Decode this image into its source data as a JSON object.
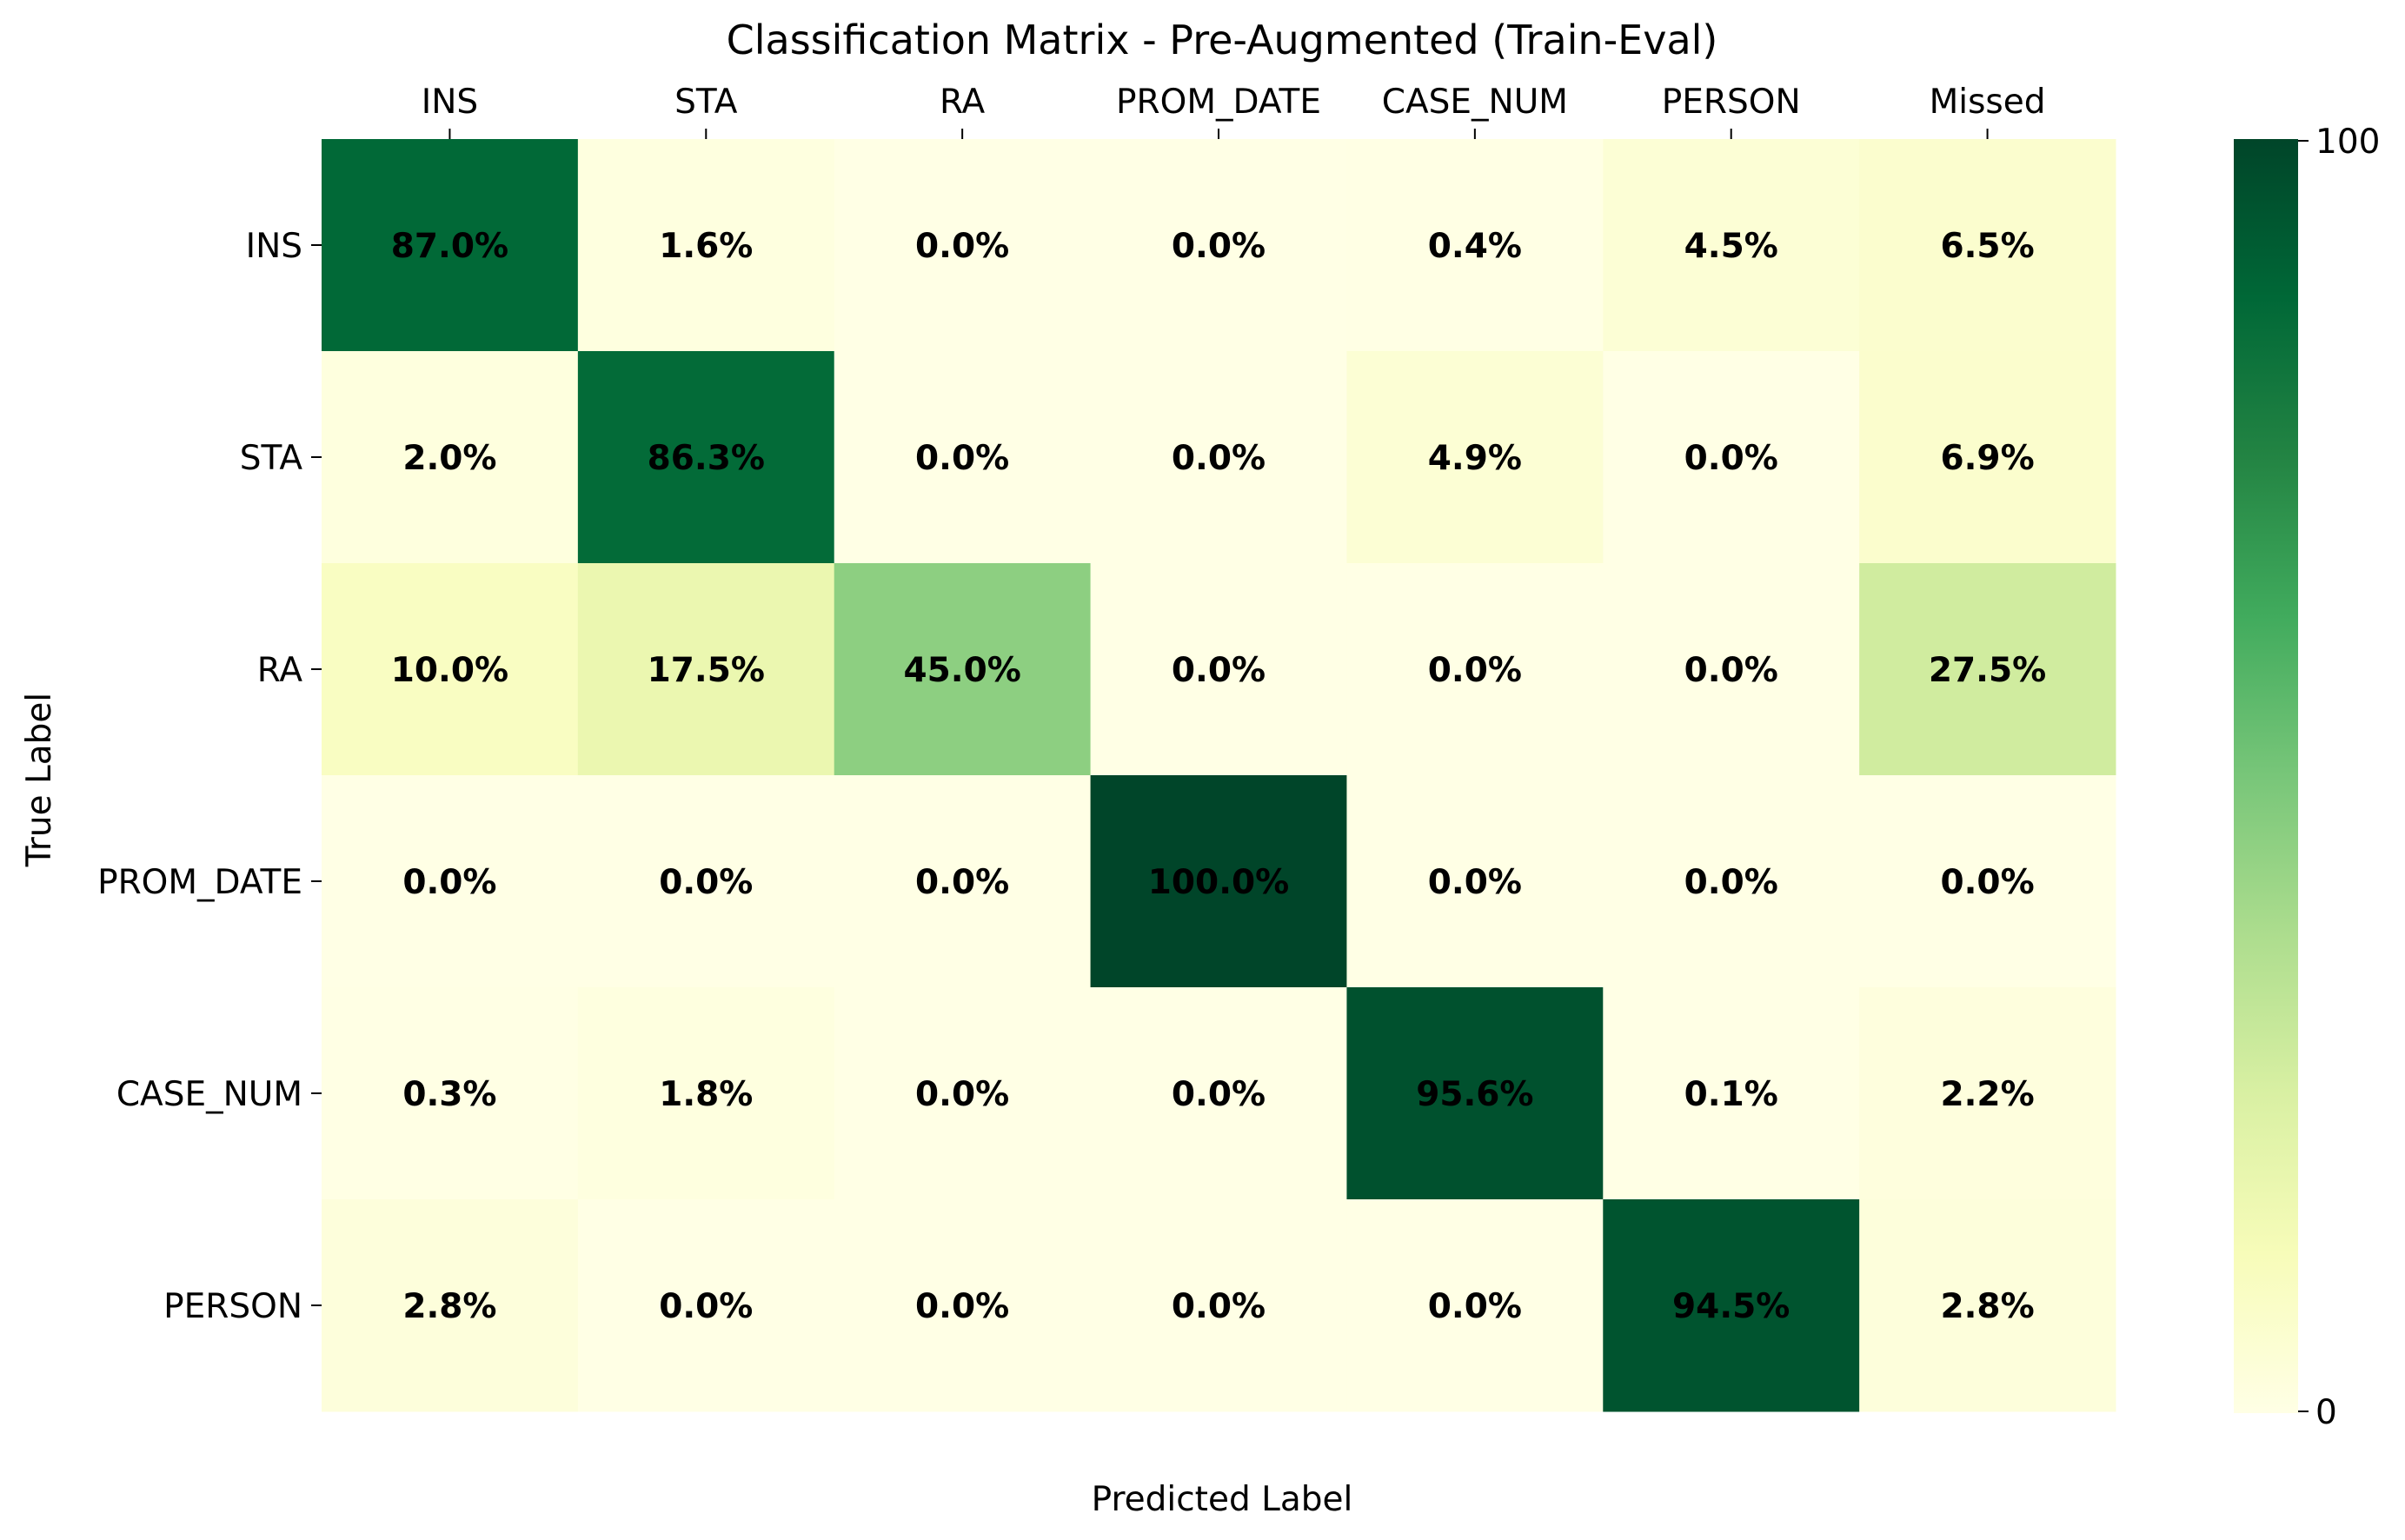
{
  "chart_data": {
    "type": "heatmap",
    "title": "Classification Matrix - Pre-Augmented (Train-Eval)",
    "xlabel": "Predicted Label",
    "ylabel": "True Label",
    "x_categories": [
      "INS",
      "STA",
      "RA",
      "PROM_DATE",
      "CASE_NUM",
      "PERSON",
      "Missed"
    ],
    "y_categories": [
      "INS",
      "STA",
      "RA",
      "PROM_DATE",
      "CASE_NUM",
      "PERSON"
    ],
    "values": [
      [
        87.0,
        1.6,
        0.0,
        0.0,
        0.4,
        4.5,
        6.5
      ],
      [
        2.0,
        86.3,
        0.0,
        0.0,
        4.9,
        0.0,
        6.9
      ],
      [
        10.0,
        17.5,
        45.0,
        0.0,
        0.0,
        0.0,
        27.5
      ],
      [
        0.0,
        0.0,
        0.0,
        100.0,
        0.0,
        0.0,
        0.0
      ],
      [
        0.3,
        1.8,
        0.0,
        0.0,
        95.6,
        0.1,
        2.2
      ],
      [
        2.8,
        0.0,
        0.0,
        0.0,
        0.0,
        94.5,
        2.8
      ]
    ],
    "value_suffix": "%",
    "colormap": "YlGn",
    "colorbar": {
      "min": 0,
      "max": 100,
      "tick_labels": [
        "0",
        "100"
      ]
    },
    "x_axis_position": "top",
    "grid": false
  }
}
